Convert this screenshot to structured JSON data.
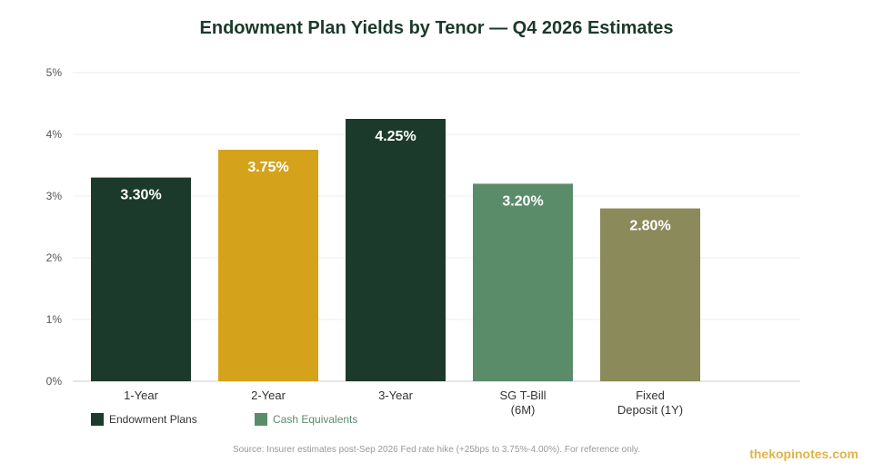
{
  "chart_data": {
    "type": "bar",
    "title": "Endowment Plan Yields by Tenor — Q4 2026 Estimates",
    "categories": [
      [
        "1-Year"
      ],
      [
        "2-Year"
      ],
      [
        "3-Year"
      ],
      [
        "SG T-Bill",
        "(6M)"
      ],
      [
        "Fixed",
        "Deposit (1Y)"
      ]
    ],
    "values": [
      3.3,
      3.75,
      4.25,
      3.2,
      2.8
    ],
    "value_labels": [
      "3.30%",
      "3.75%",
      "4.25%",
      "3.20%",
      "2.80%"
    ],
    "bar_colors": [
      "#1b3a2b",
      "#d4a21b",
      "#1b3a2b",
      "#5a8c6a",
      "#8b8a5a"
    ],
    "ylim": [
      0,
      5
    ],
    "yticks": [
      "0%",
      "1%",
      "2%",
      "3%",
      "4%",
      "5%"
    ],
    "grid": true,
    "legend": [
      {
        "label": "Endowment Plans",
        "color": "#1b3a2b"
      },
      {
        "label": "Cash Equivalents",
        "color": "#5a8c6a"
      }
    ],
    "legend_position": "bottom-left"
  },
  "footnote": "Source: Insurer estimates post-Sep 2026 Fed rate hike (+25bps to 3.75%-4.00%). For reference only.",
  "watermark": "thekopinotes.com"
}
